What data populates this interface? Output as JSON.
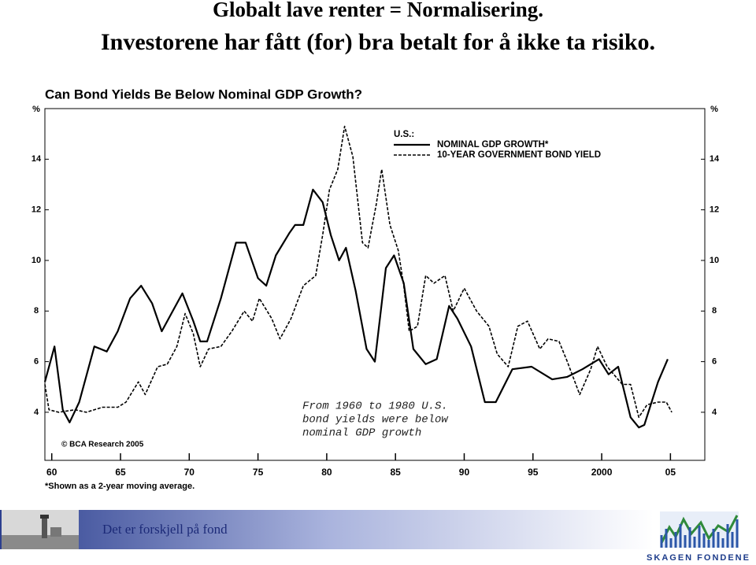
{
  "slide_title": [
    "Globalt lave renter = Normalisering.",
    "Investorene har fått (for) bra betalt for å ikke ta risiko."
  ],
  "chart_data": {
    "type": "line",
    "title": "Can Bond Yields Be Below Nominal GDP Growth?",
    "y_unit_left": "%",
    "y_unit_right": "%",
    "legend_title": "U.S.:",
    "annotation": [
      "From 1960 to 1980 U.S.",
      "bond yields were below",
      "nominal GDP growth"
    ],
    "source": "© BCA Research 2005",
    "footnote": "*Shown as a 2-year moving average.",
    "xlim": [
      1959.5,
      2007.5
    ],
    "xticks": [
      {
        "value": 1960,
        "label": "60"
      },
      {
        "value": 1965,
        "label": "65"
      },
      {
        "value": 1970,
        "label": "70"
      },
      {
        "value": 1975,
        "label": "75"
      },
      {
        "value": 1980,
        "label": "80"
      },
      {
        "value": 1985,
        "label": "85"
      },
      {
        "value": 1990,
        "label": "90"
      },
      {
        "value": 1995,
        "label": "95"
      },
      2000,
      {
        "value": 2005,
        "label": "05"
      }
    ],
    "ylim": [
      2.1,
      16.0
    ],
    "yticks": [
      4,
      6,
      8,
      10,
      12,
      14
    ],
    "series": [
      {
        "name": "NOMINAL GDP GROWTH*",
        "color": "#000000",
        "style": "solid",
        "x": [
          1959.5,
          1960.2,
          1960.8,
          1961.3,
          1962,
          1963.1,
          1964,
          1964.8,
          1965.7,
          1966.5,
          1967.3,
          1968,
          1968.7,
          1969.5,
          1970.3,
          1970.8,
          1971.3,
          1972.3,
          1973.4,
          1974.1,
          1975,
          1975.6,
          1976.3,
          1977.3,
          1977.7,
          1978.3,
          1979,
          1979.7,
          1980.3,
          1980.9,
          1981.4,
          1982.1,
          1982.9,
          1983.5,
          1984.3,
          1984.9,
          1985.6,
          1986.3,
          1987.2,
          1988,
          1988.9,
          1989.5,
          1990.5,
          1991.5,
          1992.3,
          1993.5,
          1994.9,
          1996.4,
          1997.5,
          1998.6,
          1999.8,
          2000.5,
          2001.2,
          2002.1,
          2002.7,
          2003.1,
          2004.1,
          2004.8
        ],
        "values": [
          5.2,
          6.6,
          4.1,
          3.6,
          4.4,
          6.6,
          6.4,
          7.2,
          8.5,
          9.0,
          8.3,
          7.2,
          7.9,
          8.7,
          7.6,
          6.8,
          6.8,
          8.5,
          10.7,
          10.7,
          9.3,
          9.0,
          10.2,
          11.1,
          11.4,
          11.4,
          12.8,
          12.3,
          11.0,
          10.0,
          10.5,
          8.8,
          6.5,
          6.0,
          9.7,
          10.2,
          9.1,
          6.5,
          5.9,
          6.1,
          8.2,
          7.7,
          6.6,
          4.4,
          4.4,
          5.7,
          5.8,
          5.3,
          5.4,
          5.7,
          6.1,
          5.5,
          5.8,
          3.8,
          3.4,
          3.5,
          5.2,
          6.1
        ]
      },
      {
        "name": "10-YEAR GOVERNMENT BOND YIELD",
        "color": "#000000",
        "style": "dashed",
        "x": [
          1959.5,
          1959.8,
          1960.5,
          1961.7,
          1962.5,
          1963.7,
          1964.8,
          1965.4,
          1966.3,
          1966.8,
          1967.7,
          1968.4,
          1969.1,
          1969.7,
          1970.3,
          1970.8,
          1971.4,
          1972.3,
          1973.1,
          1974,
          1974.6,
          1975.1,
          1976,
          1976.6,
          1977.4,
          1978.3,
          1979.2,
          1979.7,
          1980.2,
          1980.8,
          1981.3,
          1981.9,
          1982.6,
          1983,
          1983.6,
          1984,
          1984.6,
          1985.2,
          1985.6,
          1986,
          1986.6,
          1987.2,
          1987.8,
          1988.6,
          1989.2,
          1990,
          1990.9,
          1991.8,
          1992.4,
          1993.2,
          1993.9,
          1994.6,
          1995.5,
          1996.1,
          1996.9,
          1997.5,
          1998.4,
          1999.2,
          1999.7,
          2000.4,
          2001.5,
          2002.1,
          2002.7,
          2003.3,
          2004.1,
          2004.7,
          2005.1
        ],
        "values": [
          5.1,
          4.1,
          4.0,
          4.1,
          4.0,
          4.2,
          4.2,
          4.4,
          5.2,
          4.7,
          5.8,
          5.9,
          6.6,
          7.9,
          7.1,
          5.8,
          6.5,
          6.6,
          7.2,
          8.0,
          7.6,
          8.5,
          7.7,
          6.9,
          7.7,
          9.0,
          9.4,
          11.0,
          12.8,
          13.6,
          15.3,
          14.1,
          10.7,
          10.5,
          12.2,
          13.6,
          11.4,
          10.4,
          9.0,
          7.2,
          7.4,
          9.4,
          9.1,
          9.4,
          8.0,
          8.9,
          8.0,
          7.4,
          6.3,
          5.8,
          7.4,
          7.6,
          6.5,
          6.9,
          6.8,
          6.0,
          4.7,
          5.7,
          6.6,
          5.8,
          5.1,
          5.1,
          3.8,
          4.3,
          4.4,
          4.4,
          4.0
        ]
      }
    ]
  },
  "footer": {
    "tagline": "Det er forskjell på fond",
    "logo": "SKAGEN FONDENE"
  }
}
